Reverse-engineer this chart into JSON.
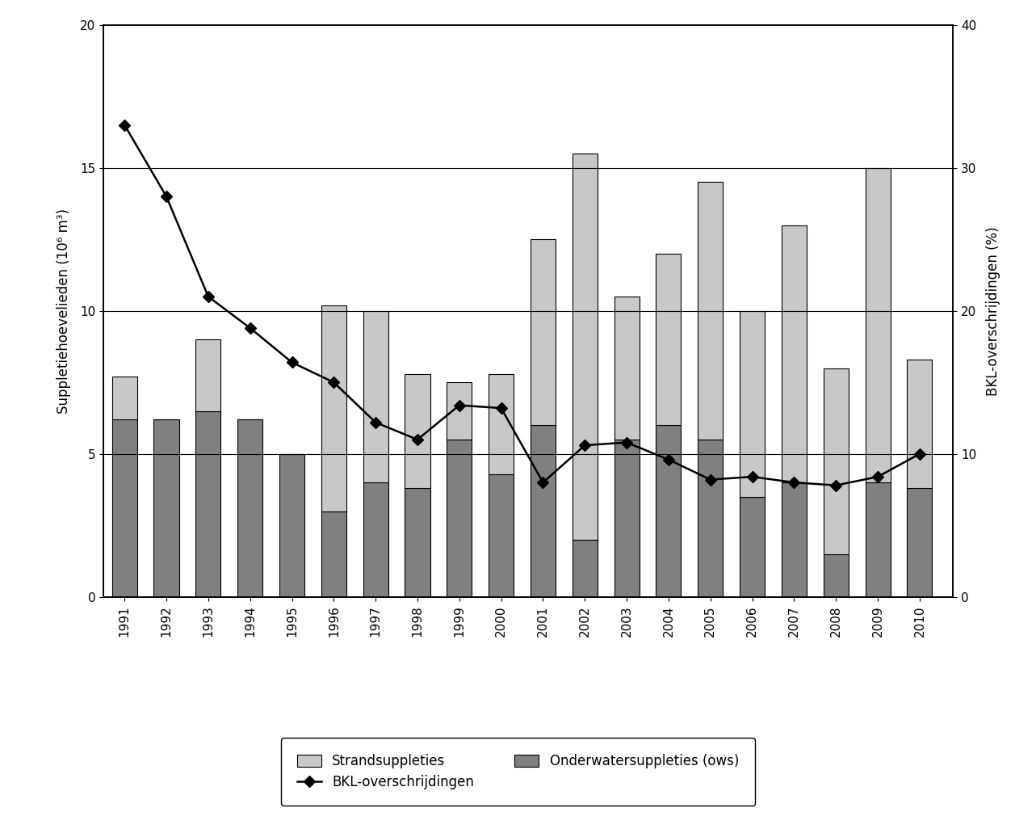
{
  "years": [
    1991,
    1992,
    1993,
    1994,
    1995,
    1996,
    1997,
    1998,
    1999,
    2000,
    2001,
    2002,
    2003,
    2004,
    2005,
    2006,
    2007,
    2008,
    2009,
    2010
  ],
  "strand_values": [
    1.5,
    0.0,
    2.5,
    0.0,
    0.0,
    7.2,
    6.0,
    4.0,
    2.0,
    3.5,
    6.5,
    13.5,
    5.0,
    6.0,
    9.0,
    6.5,
    9.0,
    6.5,
    11.0,
    4.5
  ],
  "ows_values": [
    6.2,
    6.2,
    6.5,
    6.2,
    5.0,
    3.0,
    4.0,
    3.8,
    5.5,
    4.3,
    6.0,
    2.0,
    5.5,
    6.0,
    5.5,
    3.5,
    4.0,
    1.5,
    4.0,
    3.8
  ],
  "bkl_pct": [
    33.0,
    28.0,
    21.0,
    18.8,
    16.4,
    15.0,
    12.2,
    11.0,
    13.4,
    13.2,
    8.0,
    10.6,
    10.8,
    9.6,
    8.2,
    8.4,
    8.0,
    7.8,
    8.4,
    10.0
  ],
  "strand_color": "#c8c8c8",
  "ows_color": "#808080",
  "line_color": "#000000",
  "ylim_left": [
    0,
    20
  ],
  "ylim_right": [
    0,
    40
  ],
  "yticks_left": [
    0,
    5,
    10,
    15,
    20
  ],
  "yticks_right": [
    0,
    10,
    20,
    30,
    40
  ],
  "ylabel_left": "Suppletiehoevelieden (10⁶ m³)",
  "ylabel_right": "BKL-overschrijdingen (%)",
  "legend_strand": "Strandsuppleties",
  "legend_ows": "Onderwatersuppleties (ows)",
  "legend_bkl": "BKL-overschrijdingen",
  "bar_width": 0.6,
  "background_color": "#ffffff",
  "grid_color": "#000000"
}
